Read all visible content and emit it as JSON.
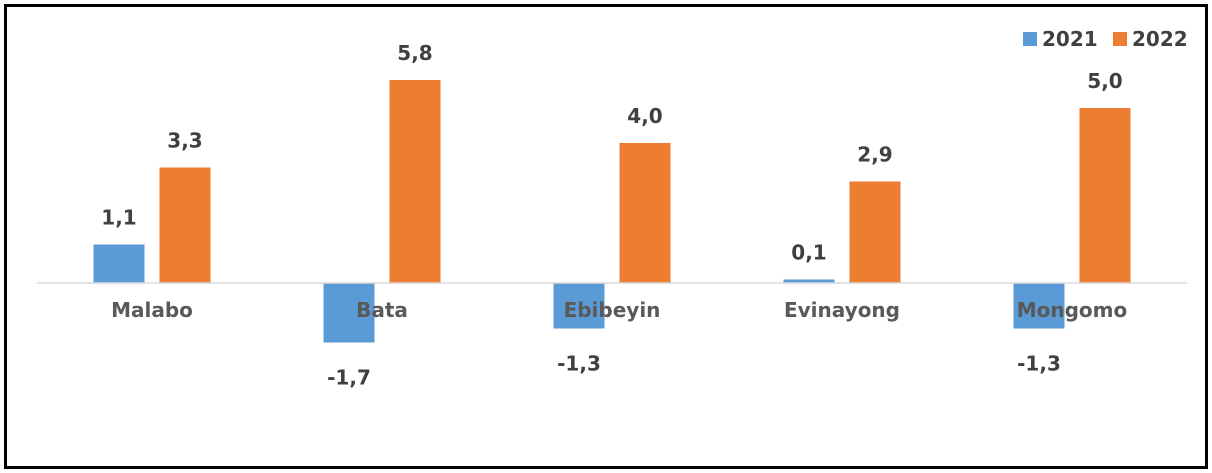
{
  "chart_data": {
    "type": "bar",
    "title": "",
    "xlabel": "",
    "ylabel": "",
    "categories": [
      "Malabo",
      "Bata",
      "Ebibeyin",
      "Evinayong",
      "Mongomo"
    ],
    "series": [
      {
        "name": "2021",
        "color": "#5B9BD5",
        "values": [
          1.1,
          -1.7,
          -1.3,
          0.1,
          -1.3
        ],
        "labels": [
          "1,1",
          "-1,7",
          "-1,3",
          "0,1",
          "-1,3"
        ]
      },
      {
        "name": "2022",
        "color": "#ED7D31",
        "values": [
          3.3,
          5.8,
          4.0,
          2.9,
          5.0
        ],
        "labels": [
          "3,3",
          "5,8",
          "4,0",
          "2,9",
          "5,0"
        ]
      }
    ],
    "ylim": [
      -4.5,
      6.6
    ],
    "grid": false,
    "legend_position": "top-right",
    "data_labels": true
  }
}
